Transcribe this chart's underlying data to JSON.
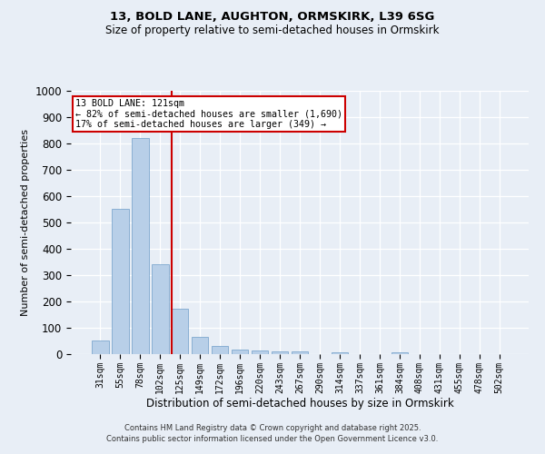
{
  "title_line1": "13, BOLD LANE, AUGHTON, ORMSKIRK, L39 6SG",
  "title_line2": "Size of property relative to semi-detached houses in Ormskirk",
  "xlabel": "Distribution of semi-detached houses by size in Ormskirk",
  "ylabel": "Number of semi-detached properties",
  "categories": [
    "31sqm",
    "55sqm",
    "78sqm",
    "102sqm",
    "125sqm",
    "149sqm",
    "172sqm",
    "196sqm",
    "220sqm",
    "243sqm",
    "267sqm",
    "290sqm",
    "314sqm",
    "337sqm",
    "361sqm",
    "384sqm",
    "408sqm",
    "431sqm",
    "455sqm",
    "478sqm",
    "502sqm"
  ],
  "values": [
    52,
    553,
    820,
    343,
    172,
    65,
    30,
    18,
    13,
    10,
    10,
    0,
    8,
    0,
    0,
    7,
    0,
    0,
    0,
    0,
    0
  ],
  "bar_color": "#b8cfe8",
  "bar_edge_color": "#6e9dc8",
  "marker_label": "13 BOLD LANE: 121sqm",
  "annotation_line2": "← 82% of semi-detached houses are smaller (1,690)",
  "annotation_line3": "17% of semi-detached houses are larger (349) →",
  "annotation_box_color": "#ffffff",
  "annotation_box_edge": "#cc0000",
  "vline_color": "#cc0000",
  "ylim": [
    0,
    1000
  ],
  "yticks": [
    0,
    100,
    200,
    300,
    400,
    500,
    600,
    700,
    800,
    900,
    1000
  ],
  "footer_line1": "Contains HM Land Registry data © Crown copyright and database right 2025.",
  "footer_line2": "Contains public sector information licensed under the Open Government Licence v3.0.",
  "bg_color": "#e8eef6",
  "plot_bg_color": "#e8eef6",
  "vline_pos": 3.57
}
